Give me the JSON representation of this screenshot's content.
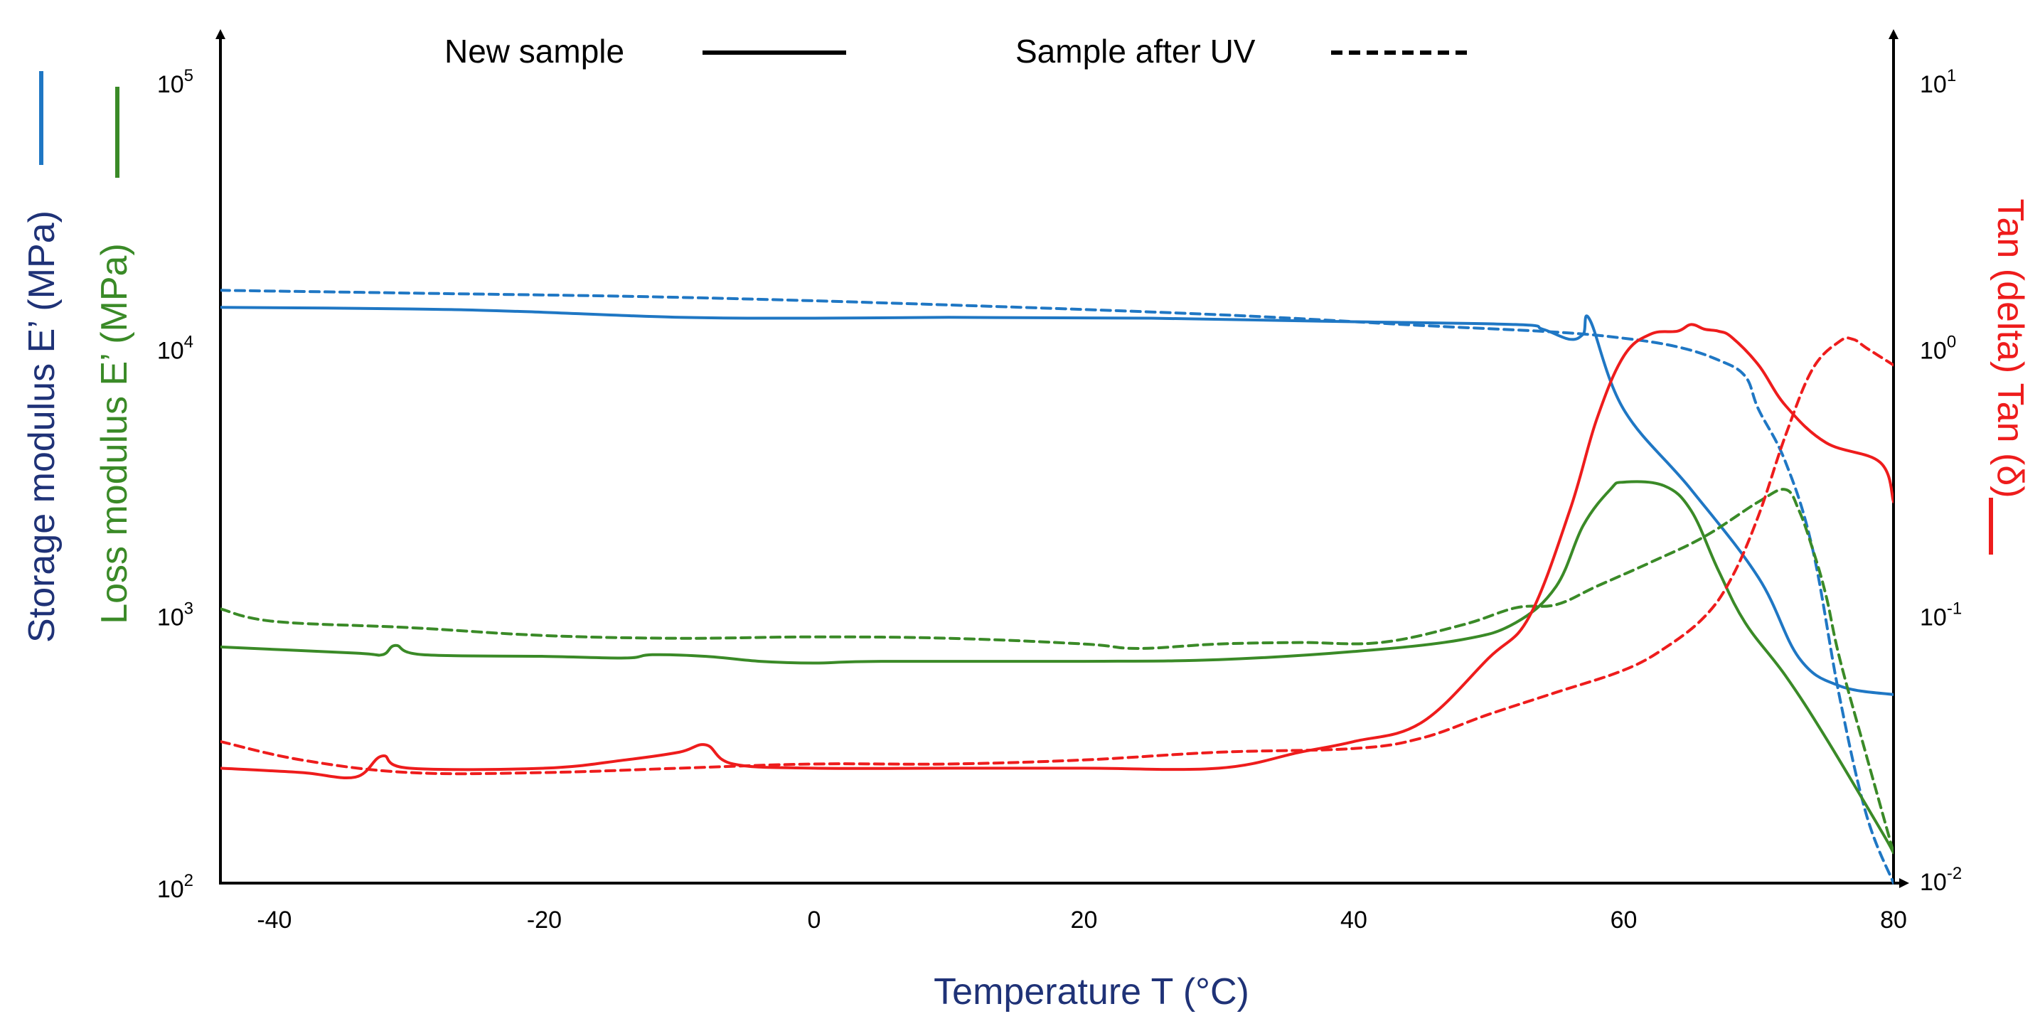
{
  "chart_data": {
    "type": "line",
    "title": "",
    "legend": {
      "position": "top",
      "entries": [
        {
          "label": "New sample",
          "style": "solid"
        },
        {
          "label": "Sample after UV",
          "style": "dashed"
        }
      ]
    },
    "xlabel": "Temperature T (°C)",
    "ylabel_left_storage": "Storage modulus E’ (MPa)",
    "ylabel_left_loss": "Loss modulus E’ (MPa)",
    "ylabel_right": "Tan (delta) Tan (δ)",
    "xlim": [
      -44,
      80
    ],
    "ylim_left": [
      100,
      100000
    ],
    "ylim_right": [
      0.01,
      10
    ],
    "yscale": "log",
    "x_ticks": [
      {
        "value": -40,
        "label": "-40"
      },
      {
        "value": -20,
        "label": "-20"
      },
      {
        "value": 0,
        "label": "0"
      },
      {
        "value": 20,
        "label": "20"
      },
      {
        "value": 40,
        "label": "40"
      },
      {
        "value": 60,
        "label": "60"
      },
      {
        "value": 80,
        "label": "80"
      }
    ],
    "y_left_ticks": [
      {
        "value": 100,
        "base": "10",
        "exp": "2"
      },
      {
        "value": 1000,
        "base": "10",
        "exp": "3"
      },
      {
        "value": 10000,
        "base": "10",
        "exp": "4"
      },
      {
        "value": 100000,
        "base": "10",
        "exp": "5"
      }
    ],
    "y_right_ticks": [
      {
        "value": 0.01,
        "base": "10",
        "exp": "-2"
      },
      {
        "value": 0.1,
        "base": "10",
        "exp": "-1"
      },
      {
        "value": 1,
        "base": "10",
        "exp": "0"
      },
      {
        "value": 10,
        "base": "10",
        "exp": "1"
      }
    ],
    "colors": {
      "storage": "#1f77c4",
      "loss": "#3a8a27",
      "tan": "#ee1c1c",
      "axis_label_dark": "#1f3277",
      "axis": "#000000"
    },
    "series": [
      {
        "name": "Storage modulus E’ – New sample",
        "axis": "left",
        "color_key": "storage",
        "dash": false,
        "x": [
          -44,
          -30,
          -22,
          -10,
          0,
          10,
          25,
          40,
          52,
          54,
          56,
          57,
          57.5,
          60,
          65,
          70,
          73,
          76,
          80
        ],
        "y": [
          14500,
          14300,
          14000,
          13300,
          13200,
          13300,
          13200,
          12800,
          12500,
          12000,
          11000,
          11500,
          13000,
          6000,
          3000,
          1400,
          700,
          550,
          510
        ]
      },
      {
        "name": "Storage modulus E’ – Sample after UV",
        "axis": "left",
        "color_key": "storage",
        "dash": true,
        "x": [
          -44,
          -30,
          -10,
          10,
          30,
          45,
          55,
          60,
          64,
          67,
          69,
          70,
          72,
          74,
          76,
          78,
          80
        ],
        "y": [
          16800,
          16400,
          15800,
          14800,
          13600,
          12400,
          11700,
          11100,
          10300,
          9200,
          8000,
          6000,
          3800,
          1800,
          500,
          180,
          100
        ]
      },
      {
        "name": "Loss modulus E’ – New sample",
        "axis": "left",
        "color_key": "loss",
        "dash": false,
        "x": [
          -44,
          -34,
          -32,
          -31,
          -29,
          -20,
          -14,
          -12,
          -8,
          -4,
          0,
          5,
          20,
          30,
          40,
          48,
          52,
          55,
          57,
          59,
          60,
          63,
          65,
          67,
          69,
          72,
          75,
          79,
          80
        ],
        "y": [
          770,
          730,
          720,
          780,
          720,
          710,
          700,
          720,
          710,
          680,
          670,
          680,
          680,
          690,
          740,
          820,
          950,
          1300,
          2200,
          3000,
          3200,
          3100,
          2500,
          1500,
          950,
          600,
          350,
          160,
          130
        ]
      },
      {
        "name": "Loss modulus E’ – Sample after UV",
        "axis": "left",
        "color_key": "loss",
        "dash": true,
        "x": [
          -44,
          -40,
          -30,
          -20,
          -10,
          0,
          10,
          20,
          24,
          30,
          36,
          42,
          48,
          52,
          55,
          58,
          62,
          66,
          70,
          72,
          73,
          74,
          75,
          76,
          78,
          80
        ],
        "y": [
          1070,
          960,
          910,
          850,
          830,
          840,
          830,
          790,
          760,
          790,
          800,
          800,
          930,
          1080,
          1110,
          1300,
          1600,
          2000,
          2700,
          3000,
          2500,
          1800,
          1200,
          700,
          300,
          130
        ]
      },
      {
        "name": "Tan (δ) – New sample",
        "axis": "right",
        "color_key": "tan",
        "dash": false,
        "x": [
          -44,
          -38,
          -34,
          -32,
          -30,
          -20,
          -14,
          -10,
          -8,
          -6,
          0,
          10,
          20,
          30,
          36,
          40,
          45,
          50,
          53,
          56,
          58,
          60,
          62,
          64,
          65,
          66,
          67,
          68,
          70,
          72,
          75,
          79,
          80
        ],
        "y": [
          0.027,
          0.026,
          0.025,
          0.03,
          0.027,
          0.027,
          0.029,
          0.031,
          0.033,
          0.028,
          0.027,
          0.027,
          0.027,
          0.027,
          0.031,
          0.034,
          0.04,
          0.07,
          0.1,
          0.25,
          0.55,
          0.95,
          1.15,
          1.18,
          1.25,
          1.2,
          1.18,
          1.12,
          0.88,
          0.62,
          0.45,
          0.38,
          0.27
        ]
      },
      {
        "name": "Tan (δ) – Sample after UV",
        "axis": "right",
        "color_key": "tan",
        "dash": true,
        "x": [
          -44,
          -38,
          -30,
          -20,
          -10,
          0,
          10,
          20,
          30,
          40,
          45,
          50,
          55,
          60,
          63,
          66,
          68,
          70,
          72,
          74,
          76,
          77,
          78,
          80
        ],
        "y": [
          0.034,
          0.029,
          0.026,
          0.026,
          0.027,
          0.028,
          0.028,
          0.029,
          0.031,
          0.032,
          0.035,
          0.043,
          0.052,
          0.063,
          0.076,
          0.1,
          0.14,
          0.24,
          0.48,
          0.85,
          1.08,
          1.1,
          1.02,
          0.88
        ]
      }
    ]
  }
}
